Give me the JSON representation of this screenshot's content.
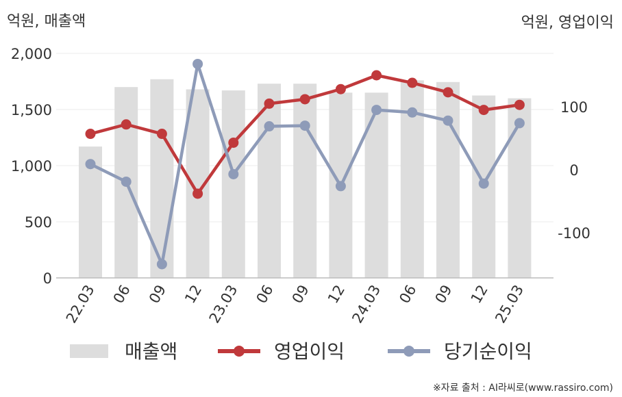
{
  "chart_data": {
    "type": "bar",
    "left_axis_unit": "억원, 매출액",
    "right_axis_unit": "억원, 영업이익",
    "categories": [
      "22.03",
      "06",
      "09",
      "12",
      "23.03",
      "06",
      "09",
      "12",
      "24.03",
      "06",
      "09",
      "12",
      "25.03"
    ],
    "left_axis": {
      "ylim": [
        0,
        2000
      ],
      "ticks": [
        "0",
        "500",
        "1,000",
        "1,500",
        "2,000"
      ]
    },
    "right_axis": {
      "ylim": [
        -175,
        175
      ],
      "ticks": [
        "-100",
        "0",
        "100"
      ]
    },
    "grid": true,
    "legend_position": "bottom",
    "series": [
      {
        "name": "매출액",
        "type": "bar",
        "axis": "left",
        "color": "#dddddd",
        "values": [
          1170,
          1700,
          1770,
          1680,
          1670,
          1730,
          1730,
          1650,
          1650,
          1760,
          1745,
          1625,
          1600
        ]
      },
      {
        "name": "영업이익",
        "type": "line",
        "axis": "right",
        "color": "#c0393b",
        "values": [
          57,
          72,
          57,
          -38,
          43,
          105,
          112,
          128,
          150,
          138,
          123,
          95,
          103
        ]
      },
      {
        "name": "당기순이익",
        "type": "line",
        "axis": "right",
        "color": "#8e9bb8",
        "values": [
          9,
          -19,
          -150,
          168,
          -7,
          69,
          70,
          -26,
          95,
          91,
          78,
          -22,
          74
        ]
      }
    ]
  },
  "source_note": "※자료 출처 : AI라씨로(www.rassiro.com)"
}
